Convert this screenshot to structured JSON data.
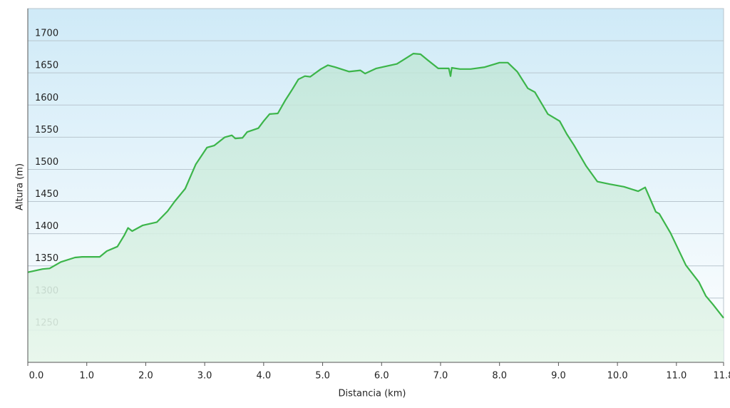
{
  "chart_data": {
    "type": "line",
    "x_label": "Distancia  (km)",
    "y_label": "Altura (m)",
    "xlim": [
      0,
      11.8
    ],
    "ylim": [
      1200,
      1750
    ],
    "xticks": [
      {
        "value": 0,
        "label": "0.0"
      },
      {
        "value": 1,
        "label": "1.0"
      },
      {
        "value": 2,
        "label": "2.0"
      },
      {
        "value": 3,
        "label": "3.0"
      },
      {
        "value": 4,
        "label": "4.0"
      },
      {
        "value": 5,
        "label": "5.0"
      },
      {
        "value": 6,
        "label": "6.0"
      },
      {
        "value": 7,
        "label": "7.0"
      },
      {
        "value": 8,
        "label": "8.0"
      },
      {
        "value": 9,
        "label": "9.0"
      },
      {
        "value": 10,
        "label": "10.0"
      },
      {
        "value": 11,
        "label": "11.0"
      },
      11.8
    ],
    "yticks": [
      1250,
      1300,
      1350,
      1400,
      1450,
      1500,
      1550,
      1600,
      1650,
      1700
    ],
    "grid": true,
    "color": "#3cb54a",
    "fill": true,
    "x": [
      0,
      0.25,
      0.37,
      0.56,
      0.8,
      0.92,
      1.22,
      1.34,
      1.52,
      1.64,
      1.7,
      1.77,
      1.95,
      2.19,
      2.37,
      2.49,
      2.67,
      2.85,
      3.04,
      3.16,
      3.34,
      3.46,
      3.52,
      3.64,
      3.72,
      3.91,
      4.0,
      4.1,
      4.24,
      4.37,
      4.49,
      4.59,
      4.7,
      4.79,
      4.97,
      5.09,
      5.21,
      5.45,
      5.64,
      5.72,
      5.91,
      6.06,
      6.26,
      6.4,
      6.54,
      6.66,
      6.78,
      6.96,
      7.14,
      7.17,
      7.19,
      7.33,
      7.51,
      7.75,
      8.0,
      8.14,
      8.3,
      8.48,
      8.6,
      8.82,
      9.02,
      9.14,
      9.26,
      9.47,
      9.66,
      9.87,
      10.11,
      10.35,
      10.47,
      10.65,
      10.71,
      10.9,
      11.16,
      11.38,
      11.5,
      11.62,
      11.8
    ],
    "values": [
      1340,
      1345,
      1346,
      1356,
      1363,
      1364,
      1364,
      1373,
      1380,
      1398,
      1409,
      1404,
      1413,
      1418,
      1435,
      1450,
      1470,
      1508,
      1534,
      1537,
      1550,
      1553,
      1548,
      1549,
      1558,
      1564,
      1575,
      1586,
      1587,
      1608,
      1625,
      1640,
      1645,
      1644,
      1656,
      1662,
      1659,
      1652,
      1654,
      1649,
      1657,
      1660,
      1664,
      1672,
      1680,
      1679,
      1670,
      1657,
      1657,
      1645,
      1658,
      1656,
      1656,
      1659,
      1666,
      1666,
      1652,
      1626,
      1620,
      1586,
      1575,
      1555,
      1538,
      1505,
      1481,
      1477,
      1473,
      1466,
      1472,
      1434,
      1431,
      1401,
      1351,
      1325,
      1303,
      1290,
      1269
    ]
  }
}
